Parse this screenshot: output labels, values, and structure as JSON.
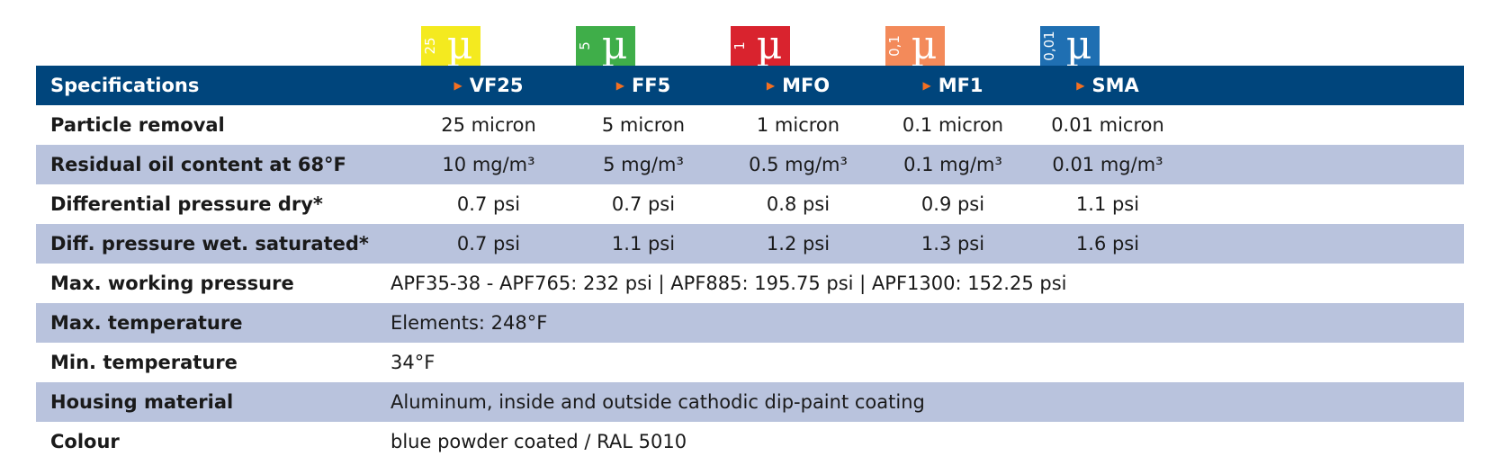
{
  "badges": [
    {
      "value": "25",
      "symbol": "µ",
      "color": "#f4ea1f"
    },
    {
      "value": "5",
      "symbol": "µ",
      "color": "#3fae49"
    },
    {
      "value": "1",
      "symbol": "µ",
      "color": "#d9232e"
    },
    {
      "value": "0,1",
      "symbol": "µ",
      "color": "#f38a5a"
    },
    {
      "value": "0,01",
      "symbol": "µ",
      "color": "#1f6fb2"
    }
  ],
  "header": {
    "label": "Specifications",
    "grades": [
      "VF25",
      "FF5",
      "MFO",
      "MF1",
      "SMA"
    ],
    "arrow": "▶"
  },
  "rows": [
    {
      "label": "Particle removal",
      "values": [
        "25 micron",
        "5 micron",
        "1 micron",
        "0.1 micron",
        "0.01 micron"
      ]
    },
    {
      "label": "Residual oil content at 68°F",
      "values": [
        "10 mg/m³",
        "5 mg/m³",
        "0.5 mg/m³",
        "0.1 mg/m³",
        "0.01 mg/m³"
      ]
    },
    {
      "label": "Differential pressure dry*",
      "values": [
        "0.7 psi",
        "0.7 psi",
        "0.8 psi",
        "0.9 psi",
        "1.1 psi"
      ]
    },
    {
      "label": "Diff. pressure wet. saturated*",
      "values": [
        "0.7 psi",
        "1.1 psi",
        "1.2 psi",
        "1.3 psi",
        "1.6 psi"
      ]
    }
  ],
  "span_rows": [
    {
      "label": "Max. working pressure",
      "value": "APF35-38 - APF765: 232 psi | APF885: 195.75 psi | APF1300: 152.25 psi"
    },
    {
      "label": "Max. temperature",
      "value": "Elements: 248°F"
    },
    {
      "label": "Min. temperature",
      "value": "34°F"
    },
    {
      "label": "Housing material",
      "value": "Aluminum, inside and outside cathodic dip-paint coating"
    },
    {
      "label": "Colour",
      "value": "blue powder coated / RAL 5010"
    }
  ]
}
